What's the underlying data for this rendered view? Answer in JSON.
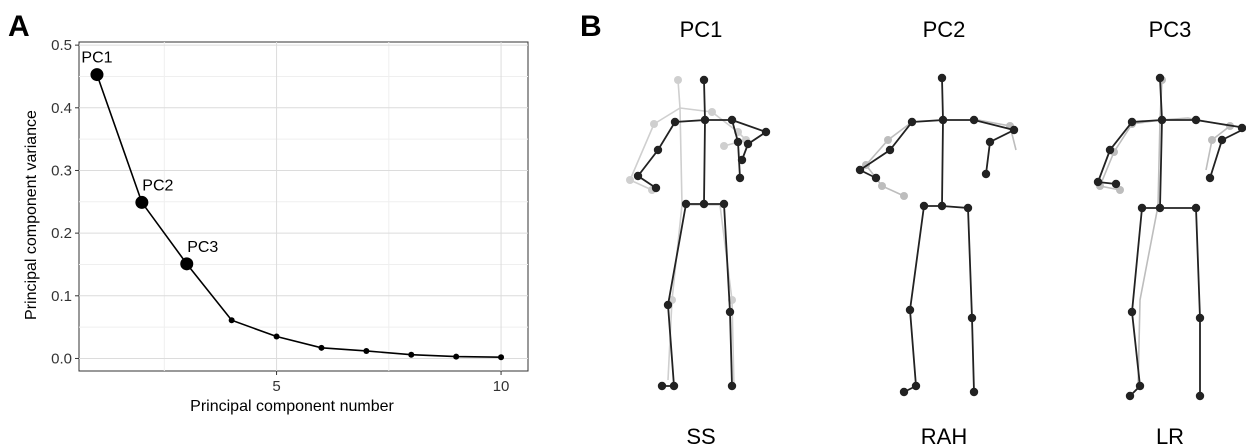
{
  "panel_a_letter": "A",
  "panel_b_letter": "B",
  "chart_data": {
    "type": "line",
    "title": "",
    "xlabel": "Principal component number",
    "ylabel": "Principal component variance",
    "xlim": [
      0.6,
      10.6
    ],
    "ylim": [
      -0.02,
      0.505
    ],
    "x_ticks": [
      5,
      10
    ],
    "y_ticks": [
      0.0,
      0.1,
      0.2,
      0.3,
      0.4,
      0.5
    ],
    "y_tick_labels": [
      "0.0",
      "0.1",
      "0.2",
      "0.3",
      "0.4",
      "0.5"
    ],
    "grid": true,
    "series": [
      {
        "x": [
          1,
          2,
          3,
          4,
          5,
          6,
          7,
          8,
          9,
          10
        ],
        "values": [
          0.453,
          0.249,
          0.151,
          0.061,
          0.035,
          0.017,
          0.012,
          0.006,
          0.003,
          0.002
        ]
      }
    ],
    "point_labels": [
      {
        "x": 1,
        "label": "PC1"
      },
      {
        "x": 2,
        "label": "PC2"
      },
      {
        "x": 3,
        "label": "PC3"
      }
    ]
  },
  "poses": [
    {
      "title": "PC1",
      "subtitle": "SS"
    },
    {
      "title": "PC2",
      "subtitle": "RAH"
    },
    {
      "title": "PC3",
      "subtitle": "LR"
    }
  ]
}
